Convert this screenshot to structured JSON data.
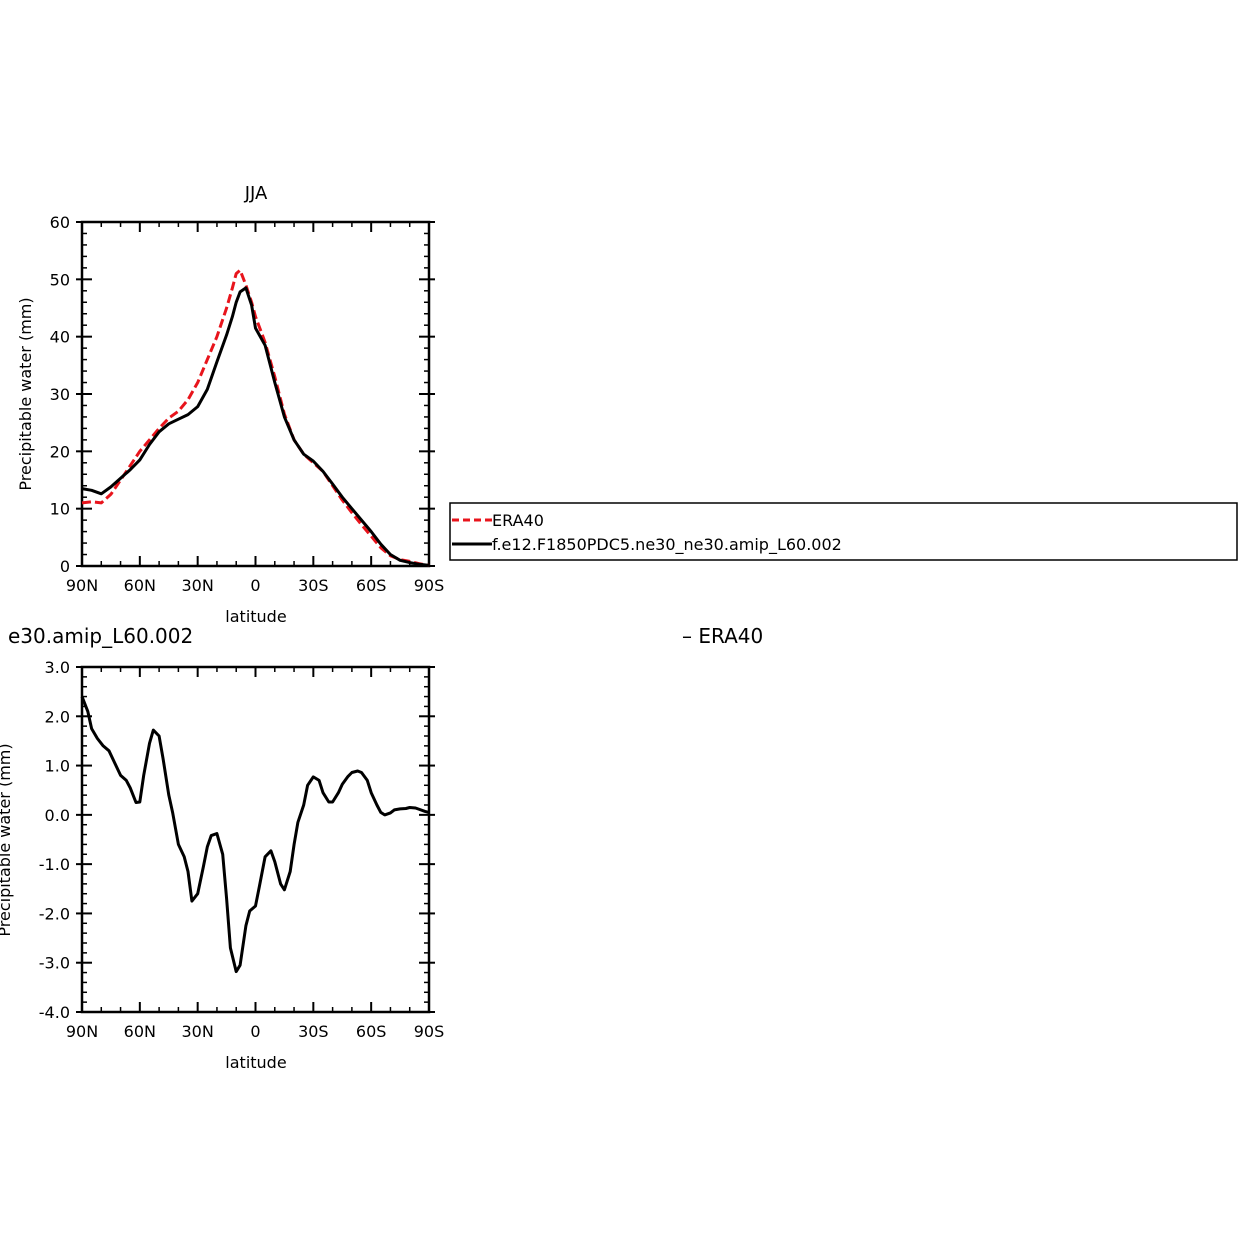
{
  "chart_data": [
    {
      "type": "line",
      "title": "JJA",
      "xlabel": "latitude",
      "ylabel": "Precipitable water (mm)",
      "xlim": [
        90,
        -90
      ],
      "ylim": [
        0,
        60
      ],
      "x_ticks": [
        90,
        60,
        30,
        0,
        -30,
        -60,
        -90
      ],
      "x_tick_labels": [
        "90N",
        "60N",
        "30N",
        "0",
        "30S",
        "60S",
        "90S"
      ],
      "y_ticks": [
        0,
        10,
        20,
        30,
        40,
        50,
        60
      ],
      "y_tick_labels": [
        "0",
        "10",
        "20",
        "30",
        "40",
        "50",
        "60"
      ],
      "legend": {
        "placement": "right",
        "entries": [
          "ERA40",
          "f.e12.F1850PDC5.ne30_ne30.amip_L60.002"
        ]
      },
      "series": [
        {
          "name": "ERA40",
          "color": "#e8141c",
          "dash": "dashed",
          "x": [
            90,
            85,
            80,
            75,
            70,
            65,
            60,
            55,
            50,
            45,
            40,
            35,
            30,
            25,
            20,
            15,
            12,
            10,
            8,
            5,
            2,
            0,
            -5,
            -10,
            -15,
            -20,
            -25,
            -30,
            -35,
            -40,
            -45,
            -50,
            -55,
            -60,
            -65,
            -70,
            -75,
            -80,
            -85,
            -90
          ],
          "y": [
            11,
            11.2,
            11,
            12.5,
            15,
            17.5,
            20,
            22,
            24,
            25.8,
            27,
            29,
            32,
            36,
            40,
            45,
            48.5,
            51,
            51.6,
            49,
            46,
            43.5,
            39,
            33,
            26.5,
            22,
            19.5,
            18,
            16.5,
            14,
            11.5,
            9.3,
            7.2,
            5.2,
            3.2,
            1.8,
            1.1,
            0.8,
            0.4,
            0.1
          ]
        },
        {
          "name": "f.e12.F1850PDC5.ne30_ne30.amip_L60.002",
          "color": "#000000",
          "dash": "solid",
          "x": [
            90,
            85,
            80,
            75,
            70,
            65,
            60,
            55,
            50,
            45,
            40,
            35,
            30,
            25,
            20,
            15,
            12,
            10,
            8,
            5,
            2,
            0,
            -5,
            -10,
            -15,
            -20,
            -25,
            -30,
            -35,
            -40,
            -45,
            -50,
            -55,
            -60,
            -65,
            -70,
            -75,
            -80,
            -85,
            -90
          ],
          "y": [
            13.5,
            13.2,
            12.6,
            13.8,
            15.3,
            16.8,
            18.5,
            21.2,
            23.4,
            24.8,
            25.6,
            26.4,
            27.8,
            30.8,
            35.6,
            40.3,
            43.5,
            46,
            47.8,
            48.5,
            45.5,
            41.5,
            38.5,
            32,
            26,
            22,
            19.5,
            18.3,
            16.5,
            14.3,
            12,
            10,
            8,
            6,
            3.8,
            2,
            1,
            0.6,
            0.3,
            0.1
          ]
        }
      ]
    },
    {
      "type": "line",
      "title": "e30.amip_L60.002",
      "title_right": "– ERA40",
      "xlabel": "latitude",
      "ylabel": "Precipitable water (mm)",
      "xlim": [
        90,
        -90
      ],
      "ylim": [
        -4.0,
        3.0
      ],
      "x_ticks": [
        90,
        60,
        30,
        0,
        -30,
        -60,
        -90
      ],
      "x_tick_labels": [
        "90N",
        "60N",
        "30N",
        "0",
        "30S",
        "60S",
        "90S"
      ],
      "y_ticks": [
        -4,
        -3,
        -2,
        -1,
        0,
        1,
        2,
        3
      ],
      "y_tick_labels": [
        "-4.0",
        "-3.0",
        "-2.0",
        "-1.0",
        "0.0",
        "1.0",
        "2.0",
        "3.0"
      ],
      "series": [
        {
          "color": "#000000",
          "x": [
            90,
            87,
            85,
            82,
            79,
            76,
            73,
            70,
            67,
            65,
            62,
            60,
            58,
            55,
            53,
            50,
            48,
            45,
            43,
            40,
            37,
            35,
            33,
            30,
            27,
            25,
            23,
            20,
            17,
            15,
            13,
            10,
            8,
            5,
            3,
            0,
            -2,
            -5,
            -8,
            -10,
            -13,
            -15,
            -18,
            -20,
            -22,
            -25,
            -27,
            -30,
            -33,
            -35,
            -38,
            -40,
            -43,
            -45,
            -48,
            -50,
            -53,
            -55,
            -58,
            -60,
            -63,
            -65,
            -67,
            -70,
            -72,
            -75,
            -78,
            -80,
            -83,
            -85,
            -88,
            -90
          ],
          "y": [
            2.4,
            2.1,
            1.75,
            1.55,
            1.4,
            1.3,
            1.05,
            0.8,
            0.7,
            0.55,
            0.25,
            0.26,
            0.8,
            1.45,
            1.72,
            1.6,
            1.15,
            0.4,
            0.05,
            -0.6,
            -0.85,
            -1.15,
            -1.75,
            -1.6,
            -1.05,
            -0.65,
            -0.42,
            -0.38,
            -0.8,
            -1.7,
            -2.7,
            -3.18,
            -3.05,
            -2.25,
            -1.95,
            -1.85,
            -1.45,
            -0.85,
            -0.73,
            -0.95,
            -1.4,
            -1.52,
            -1.15,
            -0.6,
            -0.15,
            0.2,
            0.6,
            0.77,
            0.7,
            0.45,
            0.26,
            0.26,
            0.45,
            0.62,
            0.78,
            0.86,
            0.89,
            0.86,
            0.7,
            0.45,
            0.2,
            0.05,
            0.0,
            0.04,
            0.1,
            0.12,
            0.13,
            0.15,
            0.14,
            0.11,
            0.07,
            0.05
          ]
        }
      ]
    }
  ]
}
